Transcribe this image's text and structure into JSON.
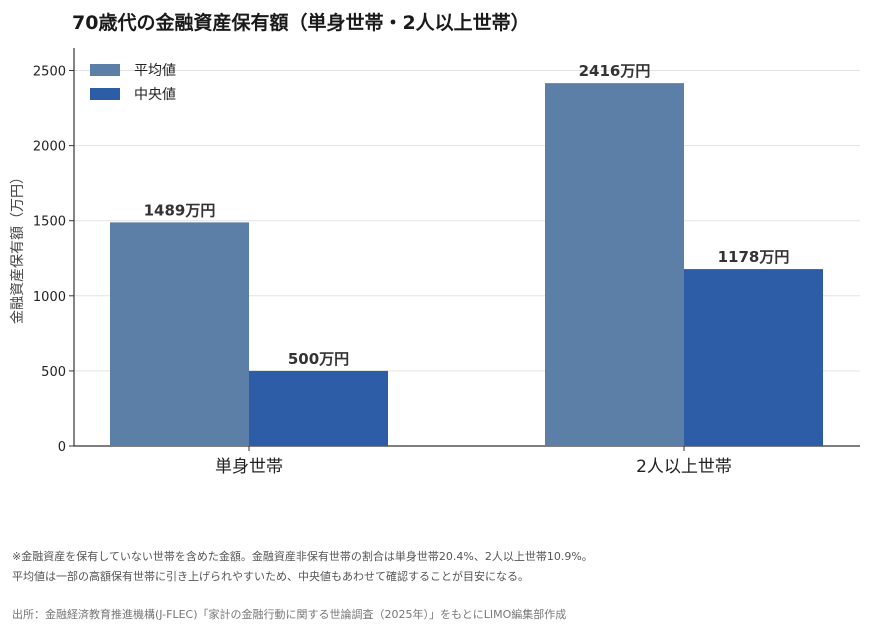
{
  "title": "70歳代の金融資産保有額（単身世帯・2人以上世帯）",
  "chart_data": {
    "type": "bar",
    "categories": [
      "単身世帯",
      "2人以上世帯"
    ],
    "series": [
      {
        "name": "平均値",
        "values": [
          1489,
          2416
        ],
        "color": "#5b7fa6"
      },
      {
        "name": "中央値",
        "values": [
          500,
          1178
        ],
        "color": "#2e5da8"
      }
    ],
    "value_label_suffix": "万円",
    "ylabel": "金融資産保有額（万円）",
    "ylim": [
      0,
      2650
    ],
    "yticks": [
      0,
      500,
      1000,
      1500,
      2000,
      2500
    ],
    "grid": true,
    "legend_position": "top-left"
  },
  "notes": [
    "※金融資産を保有していない世帯を含めた金額。金融資産非保有世帯の割合は単身世帯20.4%、2人以上世帯10.9%。",
    "平均値は一部の高額保有世帯に引き上げられやすいため、中央値もあわせて確認することが目安になる。"
  ],
  "source": "出所：金融経済教育推進機構(J-FLEC)「家計の金融行動に関する世論調査（2025年）」をもとにLIMO編集部作成"
}
